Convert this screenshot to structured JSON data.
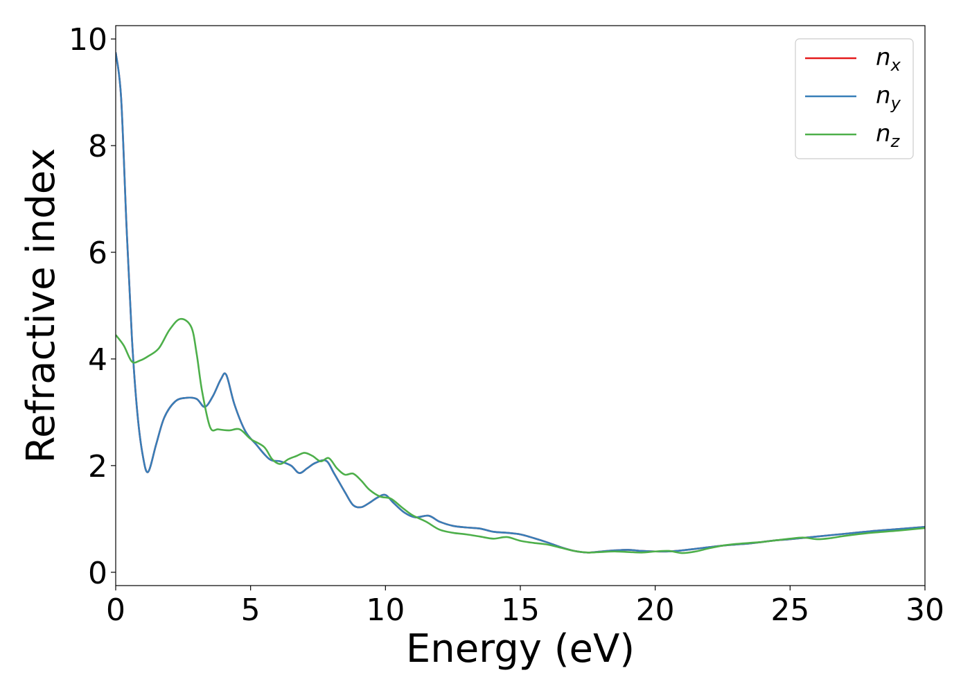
{
  "chart_data": {
    "type": "line",
    "title": "",
    "xlabel": "Energy (eV)",
    "ylabel": "Refractive index",
    "xlim": [
      0,
      30
    ],
    "ylim": [
      -0.25,
      10.25
    ],
    "xticks": [
      0,
      5,
      10,
      15,
      20,
      25,
      30
    ],
    "xtick_labels": [
      "0",
      "5",
      "10",
      "15",
      "20",
      "25",
      "30"
    ],
    "yticks": [
      0,
      2,
      4,
      6,
      8,
      10
    ],
    "ytick_labels": [
      "0",
      "2",
      "4",
      "6",
      "8",
      "10"
    ],
    "grid": false,
    "legend_position": "top-right",
    "series": [
      {
        "name": "n_x",
        "label_base": "n",
        "label_sub": "x",
        "color": "#e41a1c",
        "x": [
          0,
          0.2,
          0.4,
          0.6,
          0.8,
          1.0,
          1.2,
          1.5,
          1.8,
          2.2,
          2.6,
          3.0,
          3.3,
          3.6,
          3.9,
          4.1,
          4.4,
          4.8,
          5.2,
          5.7,
          6.1,
          6.5,
          6.8,
          7.1,
          7.4,
          7.8,
          8.1,
          8.5,
          8.8,
          9.1,
          9.4,
          9.7,
          10.0,
          10.3,
          10.7,
          11.1,
          11.6,
          12.0,
          12.5,
          13.0,
          13.5,
          14.0,
          14.5,
          15.0,
          15.5,
          16.0,
          16.5,
          17.0,
          17.5,
          18.0,
          18.5,
          19.0,
          19.5,
          20.0,
          20.5,
          21.0,
          21.5,
          22.0,
          22.5,
          23.0,
          23.5,
          24.0,
          24.5,
          25.0,
          26.0,
          27.0,
          28.0,
          29.0,
          30.0
        ],
        "y": [
          9.75,
          8.9,
          6.5,
          4.4,
          3.0,
          2.2,
          1.88,
          2.4,
          2.9,
          3.2,
          3.27,
          3.25,
          3.1,
          3.3,
          3.62,
          3.7,
          3.15,
          2.65,
          2.4,
          2.12,
          2.08,
          2.0,
          1.86,
          1.95,
          2.05,
          2.09,
          1.85,
          1.5,
          1.26,
          1.22,
          1.3,
          1.4,
          1.45,
          1.3,
          1.12,
          1.03,
          1.06,
          0.95,
          0.87,
          0.84,
          0.82,
          0.76,
          0.74,
          0.71,
          0.64,
          0.56,
          0.47,
          0.4,
          0.37,
          0.39,
          0.41,
          0.42,
          0.4,
          0.39,
          0.39,
          0.41,
          0.44,
          0.47,
          0.5,
          0.52,
          0.54,
          0.57,
          0.6,
          0.62,
          0.67,
          0.72,
          0.77,
          0.81,
          0.85
        ]
      },
      {
        "name": "n_y",
        "label_base": "n",
        "label_sub": "y",
        "color": "#377eb8",
        "x": [
          0,
          0.2,
          0.4,
          0.6,
          0.8,
          1.0,
          1.2,
          1.5,
          1.8,
          2.2,
          2.6,
          3.0,
          3.3,
          3.6,
          3.9,
          4.1,
          4.4,
          4.8,
          5.2,
          5.7,
          6.1,
          6.5,
          6.8,
          7.1,
          7.4,
          7.8,
          8.1,
          8.5,
          8.8,
          9.1,
          9.4,
          9.7,
          10.0,
          10.3,
          10.7,
          11.1,
          11.6,
          12.0,
          12.5,
          13.0,
          13.5,
          14.0,
          14.5,
          15.0,
          15.5,
          16.0,
          16.5,
          17.0,
          17.5,
          18.0,
          18.5,
          19.0,
          19.5,
          20.0,
          20.5,
          21.0,
          21.5,
          22.0,
          22.5,
          23.0,
          23.5,
          24.0,
          24.5,
          25.0,
          26.0,
          27.0,
          28.0,
          29.0,
          30.0
        ],
        "y": [
          9.75,
          8.9,
          6.5,
          4.4,
          3.0,
          2.2,
          1.88,
          2.4,
          2.9,
          3.2,
          3.27,
          3.25,
          3.1,
          3.3,
          3.62,
          3.7,
          3.15,
          2.65,
          2.4,
          2.12,
          2.08,
          2.0,
          1.86,
          1.95,
          2.05,
          2.09,
          1.85,
          1.5,
          1.26,
          1.22,
          1.3,
          1.4,
          1.45,
          1.3,
          1.12,
          1.03,
          1.06,
          0.95,
          0.87,
          0.84,
          0.82,
          0.76,
          0.74,
          0.71,
          0.64,
          0.56,
          0.47,
          0.4,
          0.37,
          0.39,
          0.41,
          0.42,
          0.4,
          0.39,
          0.39,
          0.41,
          0.44,
          0.47,
          0.5,
          0.52,
          0.54,
          0.57,
          0.6,
          0.62,
          0.67,
          0.72,
          0.77,
          0.81,
          0.85
        ]
      },
      {
        "name": "n_z",
        "label_base": "n",
        "label_sub": "z",
        "color": "#4daf4a",
        "x": [
          0,
          0.3,
          0.6,
          0.9,
          1.2,
          1.6,
          2.0,
          2.4,
          2.8,
          3.0,
          3.2,
          3.5,
          3.8,
          4.2,
          4.6,
          5.0,
          5.5,
          5.8,
          6.1,
          6.4,
          6.7,
          7.0,
          7.3,
          7.6,
          7.9,
          8.2,
          8.5,
          8.8,
          9.1,
          9.4,
          9.8,
          10.2,
          10.6,
          11.0,
          11.5,
          12.0,
          12.5,
          13.0,
          13.5,
          14.0,
          14.5,
          15.0,
          15.5,
          16.0,
          16.5,
          17.0,
          17.5,
          18.0,
          18.5,
          19.0,
          19.5,
          20.0,
          20.5,
          21.0,
          21.5,
          22.0,
          22.5,
          23.0,
          23.5,
          24.0,
          24.5,
          25.0,
          25.5,
          26.0,
          26.5,
          27.0,
          28.0,
          29.0,
          30.0
        ],
        "y": [
          4.45,
          4.25,
          3.95,
          3.97,
          4.05,
          4.2,
          4.55,
          4.75,
          4.6,
          4.1,
          3.4,
          2.72,
          2.68,
          2.66,
          2.68,
          2.5,
          2.35,
          2.12,
          2.03,
          2.12,
          2.18,
          2.24,
          2.18,
          2.08,
          2.14,
          1.95,
          1.83,
          1.85,
          1.72,
          1.55,
          1.42,
          1.38,
          1.22,
          1.07,
          0.95,
          0.8,
          0.74,
          0.71,
          0.67,
          0.63,
          0.66,
          0.59,
          0.55,
          0.52,
          0.46,
          0.4,
          0.37,
          0.38,
          0.39,
          0.38,
          0.37,
          0.39,
          0.4,
          0.36,
          0.39,
          0.45,
          0.5,
          0.53,
          0.55,
          0.57,
          0.6,
          0.63,
          0.65,
          0.62,
          0.64,
          0.68,
          0.74,
          0.78,
          0.83
        ]
      }
    ]
  }
}
